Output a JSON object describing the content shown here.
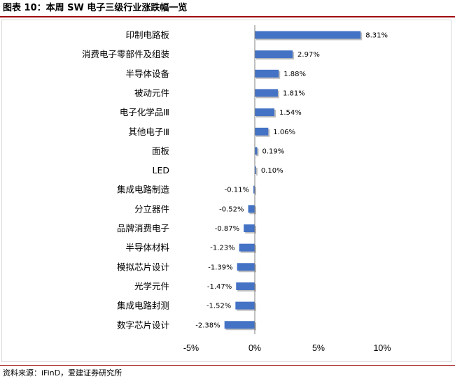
{
  "figure": {
    "title": "图表 10：本周 SW 电子三级行业涨跌幅一览",
    "source": "资料来源：iFinD，爱建证券研究所"
  },
  "chart_data": {
    "type": "bar",
    "orientation": "horizontal",
    "title": "",
    "xlabel": "",
    "ylabel": "",
    "categories": [
      "印制电路板",
      "消费电子零部件及组装",
      "半导体设备",
      "被动元件",
      "电子化学品Ⅲ",
      "其他电子Ⅲ",
      "面板",
      "LED",
      "集成电路制造",
      "分立器件",
      "品牌消费电子",
      "半导体材料",
      "模拟芯片设计",
      "光学元件",
      "集成电路封测",
      "数字芯片设计"
    ],
    "series": [
      {
        "values": [
          8.31,
          2.97,
          1.88,
          1.81,
          1.54,
          1.06,
          0.19,
          0.1,
          -0.11,
          -0.52,
          -0.87,
          -1.23,
          -1.39,
          -1.47,
          -1.52,
          -2.38
        ],
        "labels": [
          "8.31%",
          "2.97%",
          "1.88%",
          "1.81%",
          "1.54%",
          "1.06%",
          "0.19%",
          "0.10%",
          "-0.11%",
          "-0.52%",
          "-0.87%",
          "-1.23%",
          "-1.39%",
          "-1.47%",
          "-1.52%",
          "-2.38%"
        ],
        "color": "#4472c4"
      }
    ],
    "xlim": [
      -5,
      10
    ],
    "xticks": [
      -5,
      0,
      5,
      10
    ],
    "xtick_labels": [
      "-5%",
      "0%",
      "5%",
      "10%"
    ],
    "grid": false,
    "legend": "none"
  }
}
